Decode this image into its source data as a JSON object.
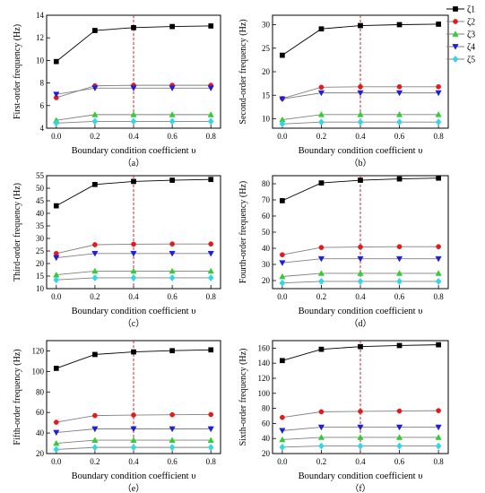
{
  "legend": [
    {
      "label": "ζ1",
      "color": "#000000",
      "marker": "square"
    },
    {
      "label": "ζ2",
      "color": "#e41a1c",
      "marker": "circle"
    },
    {
      "label": "ζ3",
      "color": "#33cc33",
      "marker": "triangle-up"
    },
    {
      "label": "ζ4",
      "color": "#1f1fd6",
      "marker": "triangle-down"
    },
    {
      "label": "ζ5",
      "color": "#33d6e6",
      "marker": "diamond"
    }
  ],
  "marker_line_color": "#808080",
  "reference_line": {
    "x": 0.4,
    "color": "#d62728",
    "style": "dashed"
  },
  "chart_data": [
    {
      "type": "line",
      "caption": "（a）",
      "xlabel": "Boundary condition coefficient υ",
      "ylabel": "First-order frequency (Hz)",
      "x": [
        0.0,
        0.2,
        0.4,
        0.6,
        0.8
      ],
      "xticks": [
        "0.0",
        "0.2",
        "0.4",
        "0.6",
        "0.8"
      ],
      "xlim": [
        -0.05,
        0.85
      ],
      "ylim": [
        4,
        14
      ],
      "yticks": [
        4,
        6,
        8,
        10,
        12,
        14
      ],
      "series": [
        {
          "name": "ζ1",
          "values": [
            9.9,
            12.65,
            12.9,
            13.0,
            13.05
          ]
        },
        {
          "name": "ζ2",
          "values": [
            6.7,
            7.75,
            7.8,
            7.8,
            7.8
          ]
        },
        {
          "name": "ζ3",
          "values": [
            4.7,
            5.2,
            5.2,
            5.2,
            5.2
          ]
        },
        {
          "name": "ζ4",
          "values": [
            7.0,
            7.55,
            7.55,
            7.55,
            7.55
          ]
        },
        {
          "name": "ζ5",
          "values": [
            4.45,
            4.6,
            4.6,
            4.6,
            4.6
          ]
        }
      ]
    },
    {
      "type": "line",
      "caption": "（b）",
      "xlabel": "Boundary condition coefficient υ",
      "ylabel": "Second-order frequency (Hz)",
      "x": [
        0.0,
        0.2,
        0.4,
        0.6,
        0.8
      ],
      "xticks": [
        "0.0",
        "0.2",
        "0.4",
        "0.6",
        "0.8"
      ],
      "xlim": [
        -0.05,
        0.85
      ],
      "ylim": [
        8,
        32
      ],
      "yticks": [
        10,
        15,
        20,
        25,
        30
      ],
      "series": [
        {
          "name": "ζ1",
          "values": [
            23.5,
            29.1,
            29.8,
            30.0,
            30.1
          ]
        },
        {
          "name": "ζ2",
          "values": [
            14.3,
            16.7,
            16.8,
            16.8,
            16.8
          ]
        },
        {
          "name": "ζ3",
          "values": [
            9.8,
            10.9,
            10.9,
            10.9,
            10.9
          ]
        },
        {
          "name": "ζ4",
          "values": [
            14.2,
            15.5,
            15.5,
            15.5,
            15.5
          ]
        },
        {
          "name": "ζ5",
          "values": [
            8.9,
            9.3,
            9.3,
            9.3,
            9.3
          ]
        }
      ]
    },
    {
      "type": "line",
      "caption": "（c）",
      "xlabel": "Boundary condition coefficient υ",
      "ylabel": "Third-order frequency (Hz)",
      "x": [
        0.0,
        0.2,
        0.4,
        0.6,
        0.8
      ],
      "xticks": [
        "0.0",
        "0.2",
        "0.4",
        "0.6",
        "0.8"
      ],
      "xlim": [
        -0.05,
        0.85
      ],
      "ylim": [
        10,
        55
      ],
      "yticks": [
        10,
        15,
        20,
        25,
        30,
        35,
        40,
        45,
        50,
        55
      ],
      "series": [
        {
          "name": "ζ1",
          "values": [
            43.0,
            51.5,
            52.7,
            53.2,
            53.5
          ]
        },
        {
          "name": "ζ2",
          "values": [
            24.0,
            27.5,
            27.7,
            27.8,
            27.8
          ]
        },
        {
          "name": "ζ3",
          "values": [
            15.5,
            17.0,
            17.0,
            17.0,
            17.0
          ]
        },
        {
          "name": "ζ4",
          "values": [
            22.3,
            24.0,
            24.0,
            24.0,
            24.0
          ]
        },
        {
          "name": "ζ5",
          "values": [
            13.5,
            14.3,
            14.3,
            14.3,
            14.3
          ]
        }
      ]
    },
    {
      "type": "line",
      "caption": "（d）",
      "xlabel": "Boundary condition coefficient υ",
      "ylabel": "Fourth-order frequency (Hz)",
      "x": [
        0.0,
        0.2,
        0.4,
        0.6,
        0.8
      ],
      "xticks": [
        "0.0",
        "0.2",
        "0.4",
        "0.6",
        "0.8"
      ],
      "xlim": [
        -0.05,
        0.85
      ],
      "ylim": [
        15,
        85
      ],
      "yticks": [
        20,
        30,
        40,
        50,
        60,
        70,
        80
      ],
      "series": [
        {
          "name": "ζ1",
          "values": [
            69.5,
            80.5,
            82.2,
            83.0,
            83.5
          ]
        },
        {
          "name": "ζ2",
          "values": [
            36.0,
            40.5,
            40.8,
            41.0,
            41.0
          ]
        },
        {
          "name": "ζ3",
          "values": [
            22.5,
            24.5,
            24.5,
            24.5,
            24.5
          ]
        },
        {
          "name": "ζ4",
          "values": [
            31.0,
            33.5,
            33.5,
            33.5,
            33.5
          ]
        },
        {
          "name": "ζ5",
          "values": [
            18.5,
            19.5,
            19.5,
            19.5,
            19.5
          ]
        }
      ]
    },
    {
      "type": "line",
      "caption": "（e）",
      "xlabel": "Boundary condition coefficient υ",
      "ylabel": "Fifth-order frequency (Hz)",
      "x": [
        0.0,
        0.2,
        0.4,
        0.6,
        0.8
      ],
      "xticks": [
        "0.0",
        "0.2",
        "0.4",
        "0.6",
        "0.8"
      ],
      "xlim": [
        -0.05,
        0.85
      ],
      "ylim": [
        20,
        130
      ],
      "yticks": [
        20,
        40,
        60,
        80,
        100,
        120
      ],
      "series": [
        {
          "name": "ζ1",
          "values": [
            103.0,
            116.5,
            119.0,
            120.2,
            121.0
          ]
        },
        {
          "name": "ζ2",
          "values": [
            50.5,
            57.0,
            57.5,
            57.8,
            58.0
          ]
        },
        {
          "name": "ζ3",
          "values": [
            30.0,
            33.0,
            33.0,
            33.0,
            33.0
          ]
        },
        {
          "name": "ζ4",
          "values": [
            40.5,
            44.0,
            44.0,
            44.0,
            44.0
          ]
        },
        {
          "name": "ζ5",
          "values": [
            24.0,
            26.0,
            26.0,
            26.0,
            26.0
          ]
        }
      ]
    },
    {
      "type": "line",
      "caption": "（f）",
      "xlabel": "Boundary condition coefficient υ",
      "ylabel": "Sixth-order frequency (Hz)",
      "x": [
        0.0,
        0.2,
        0.4,
        0.6,
        0.8
      ],
      "xticks": [
        "0.0",
        "0.2",
        "0.4",
        "0.6",
        "0.8"
      ],
      "xlim": [
        -0.05,
        0.85
      ],
      "ylim": [
        20,
        170
      ],
      "yticks": [
        20,
        40,
        60,
        80,
        100,
        120,
        140,
        160
      ],
      "series": [
        {
          "name": "ζ1",
          "values": [
            143.5,
            158.5,
            162.0,
            163.5,
            164.5
          ]
        },
        {
          "name": "ζ2",
          "values": [
            68.0,
            75.5,
            76.0,
            76.5,
            77.0
          ]
        },
        {
          "name": "ζ3",
          "values": [
            38.5,
            41.5,
            41.5,
            41.5,
            41.5
          ]
        },
        {
          "name": "ζ4",
          "values": [
            50.5,
            55.0,
            55.0,
            55.0,
            55.0
          ]
        },
        {
          "name": "ζ5",
          "values": [
            28.5,
            30.0,
            30.0,
            30.0,
            30.0
          ]
        }
      ]
    }
  ]
}
